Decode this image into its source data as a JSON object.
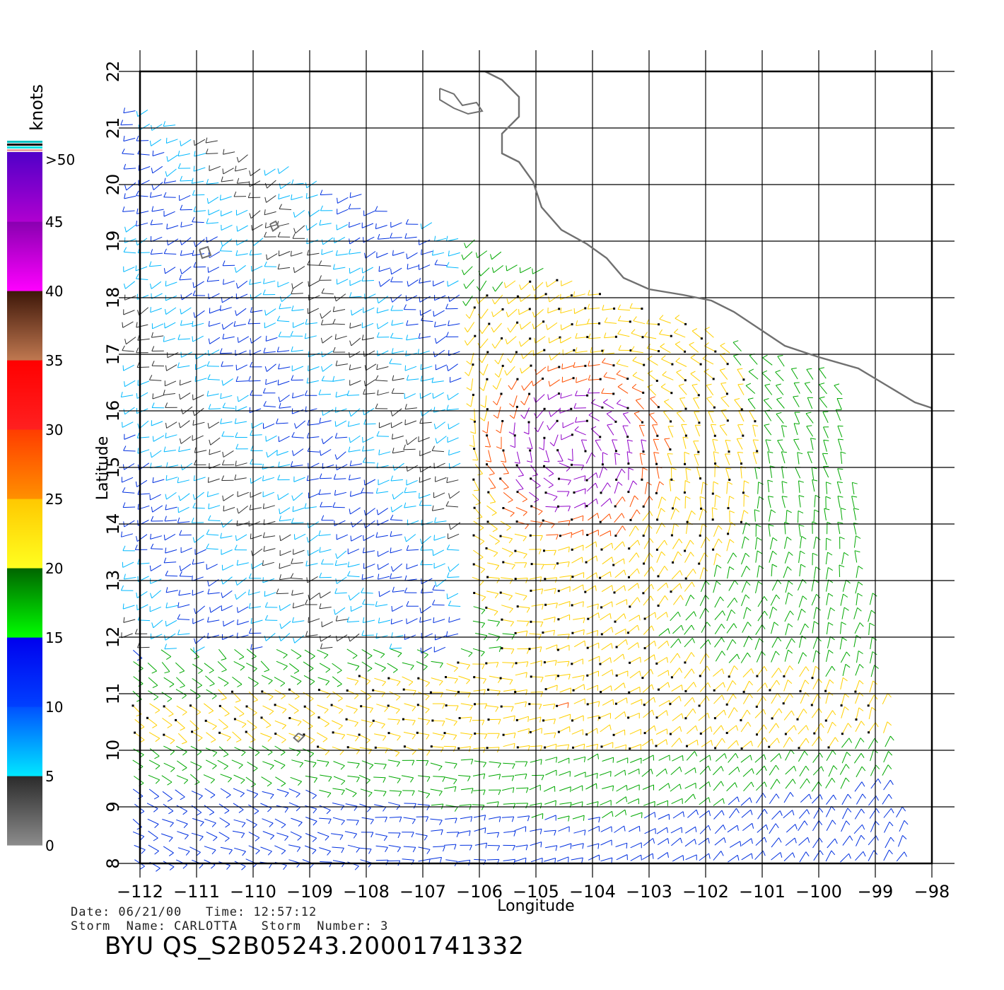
{
  "map": {
    "lon_min": -112,
    "lon_max": -98,
    "lat_min": 8,
    "lat_max": 22,
    "lon_ticks": [
      -112,
      -111,
      -110,
      -109,
      -108,
      -107,
      -106,
      -105,
      -104,
      -103,
      -102,
      -101,
      -100,
      -99,
      -98
    ],
    "lat_ticks": [
      8,
      9,
      10,
      11,
      12,
      13,
      14,
      15,
      16,
      17,
      18,
      19,
      20,
      21,
      22
    ],
    "lon_tick_labels": [
      "−112",
      "−111",
      "−110",
      "−109",
      "−108",
      "−107",
      "−106",
      "−105",
      "−104",
      "−103",
      "−102",
      "−101",
      "−100",
      "−99",
      "−98"
    ],
    "lat_tick_labels": [
      "8",
      "9",
      "10",
      "11",
      "12",
      "13",
      "14",
      "15",
      "16",
      "17",
      "18",
      "19",
      "20",
      "21",
      "22"
    ],
    "xlabel": "Longitude",
    "ylabel": "Latitude",
    "storm_center": [
      -104.3,
      15.3
    ],
    "coastline": [
      [
        -105.9,
        22.0
      ],
      [
        -105.6,
        21.85
      ],
      [
        -105.3,
        21.55
      ],
      [
        -105.3,
        21.2
      ],
      [
        -105.6,
        20.9
      ],
      [
        -105.6,
        20.55
      ],
      [
        -105.3,
        20.4
      ],
      [
        -105.05,
        20.05
      ],
      [
        -104.9,
        19.6
      ],
      [
        -104.55,
        19.2
      ],
      [
        -104.1,
        18.95
      ],
      [
        -103.75,
        18.7
      ],
      [
        -103.45,
        18.35
      ],
      [
        -103.0,
        18.15
      ],
      [
        -102.4,
        18.05
      ],
      [
        -101.9,
        17.95
      ],
      [
        -101.5,
        17.75
      ],
      [
        -101.05,
        17.45
      ],
      [
        -100.6,
        17.15
      ],
      [
        -100.0,
        16.95
      ],
      [
        -99.3,
        16.75
      ],
      [
        -98.8,
        16.45
      ],
      [
        -98.3,
        16.15
      ],
      [
        -98.0,
        16.05
      ]
    ],
    "islands": [
      [
        [
          -109.7,
          19.3
        ],
        [
          -109.6,
          19.35
        ],
        [
          -109.55,
          19.25
        ],
        [
          -109.65,
          19.18
        ],
        [
          -109.7,
          19.3
        ]
      ],
      [
        [
          -110.95,
          18.85
        ],
        [
          -110.8,
          18.9
        ],
        [
          -110.75,
          18.75
        ],
        [
          -110.9,
          18.7
        ],
        [
          -110.95,
          18.85
        ]
      ],
      [
        [
          -106.7,
          21.7
        ],
        [
          -106.45,
          21.6
        ],
        [
          -106.3,
          21.4
        ],
        [
          -106.05,
          21.45
        ],
        [
          -105.95,
          21.3
        ],
        [
          -106.2,
          21.25
        ],
        [
          -106.45,
          21.35
        ],
        [
          -106.7,
          21.5
        ],
        [
          -106.7,
          21.7
        ]
      ],
      [
        [
          -109.2,
          10.3
        ],
        [
          -109.1,
          10.25
        ],
        [
          -109.2,
          10.15
        ],
        [
          -109.28,
          10.22
        ],
        [
          -109.2,
          10.3
        ]
      ]
    ]
  },
  "colorbar": {
    "unit": "knots",
    "tick_labels": [
      ">50",
      "45",
      "40",
      "35",
      "30",
      "25",
      "20",
      "15",
      "10",
      "5",
      "0"
    ],
    "segments": [
      {
        "from": 0,
        "to": 5,
        "top": "#2a2a2a",
        "bottom": "#8c8c8c"
      },
      {
        "from": 5,
        "to": 10,
        "top": "#0050ff",
        "bottom": "#00e8ff"
      },
      {
        "from": 10,
        "to": 15,
        "top": "#0000ee",
        "bottom": "#0040ff"
      },
      {
        "from": 15,
        "to": 20,
        "top": "#006400",
        "bottom": "#00ff00"
      },
      {
        "from": 20,
        "to": 25,
        "top": "#ffc800",
        "bottom": "#ffff20"
      },
      {
        "from": 25,
        "to": 30,
        "top": "#ff3c00",
        "bottom": "#ff9000"
      },
      {
        "from": 30,
        "to": 35,
        "top": "#ff0000",
        "bottom": "#ff2020"
      },
      {
        "from": 35,
        "to": 40,
        "top": "#3c1608",
        "bottom": "#c07850"
      },
      {
        "from": 40,
        "to": 45,
        "top": "#8800b0",
        "bottom": "#ff00ff"
      },
      {
        "from": 45,
        "to": 50,
        "top": "#5000c8",
        "bottom": "#b000d0"
      }
    ]
  },
  "info": {
    "line1": "Date: 06/21/00   Time: 12:57:12",
    "line2": "Storm  Name: CARLOTTA   Storm  Number: 3",
    "file_id": "BYU  QS_S2B05243.20001741332"
  }
}
